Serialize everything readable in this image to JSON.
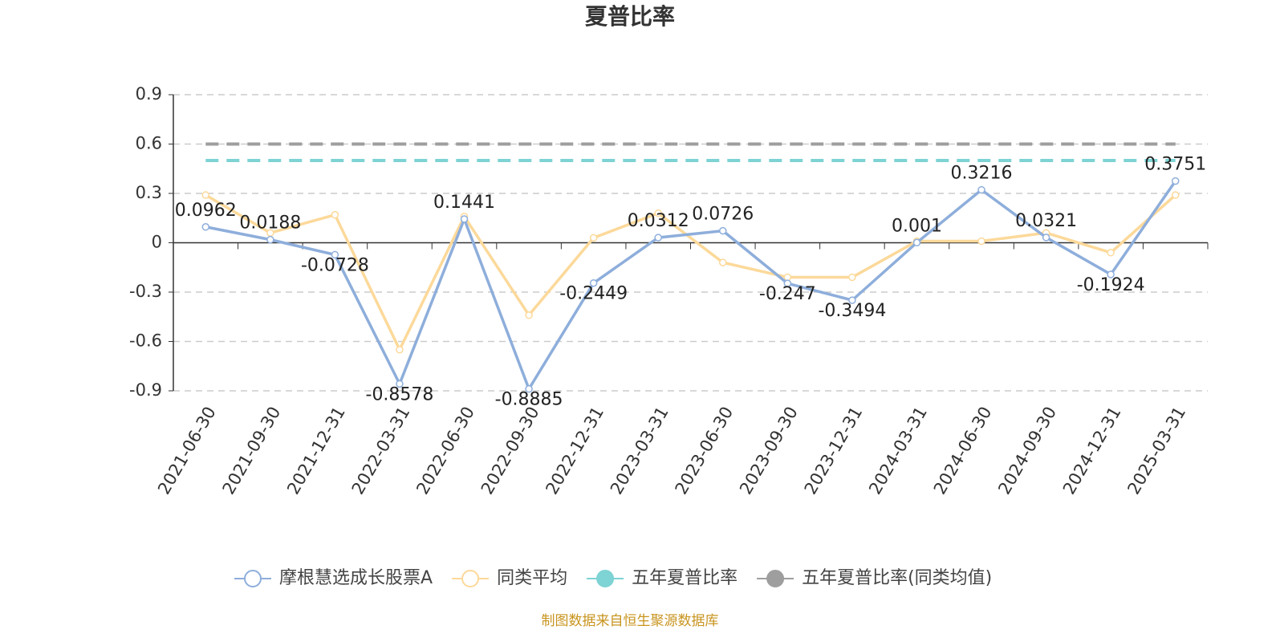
{
  "chart_data": {
    "type": "line",
    "title": "夏普比率",
    "categories": [
      "2021-06-30",
      "2021-09-30",
      "2021-12-31",
      "2022-03-31",
      "2022-06-30",
      "2022-09-30",
      "2022-12-31",
      "2023-03-31",
      "2023-06-30",
      "2023-09-30",
      "2023-12-31",
      "2024-03-31",
      "2024-06-30",
      "2024-09-30",
      "2024-12-31",
      "2025-03-31"
    ],
    "series": [
      {
        "name": "摩根慧选成长股票A",
        "color": "#8eaedb",
        "values": [
          0.0962,
          0.0188,
          -0.0728,
          -0.8578,
          0.1441,
          -0.8885,
          -0.2449,
          0.0312,
          0.0726,
          -0.247,
          -0.3494,
          0.001,
          0.3216,
          0.0321,
          -0.1924,
          0.3751
        ]
      },
      {
        "name": "同类平均",
        "color": "#fcd99a",
        "values": [
          0.29,
          0.06,
          0.17,
          -0.65,
          0.16,
          -0.44,
          0.03,
          0.18,
          -0.12,
          -0.21,
          -0.21,
          0.01,
          0.01,
          0.06,
          -0.06,
          0.29
        ]
      }
    ],
    "reference_lines": [
      {
        "name": "五年夏普比率",
        "color": "#7ed3d4",
        "value": 0.5
      },
      {
        "name": "五年夏普比率(同类均值)",
        "color": "#9e9e9e",
        "value": 0.6
      }
    ],
    "ylim": [
      -0.9,
      0.9
    ],
    "yticks": [
      0.9,
      0.6,
      0.3,
      0,
      -0.3,
      -0.6,
      -0.9
    ],
    "grid": true,
    "source": "制图数据来自恒生聚源数据库"
  }
}
